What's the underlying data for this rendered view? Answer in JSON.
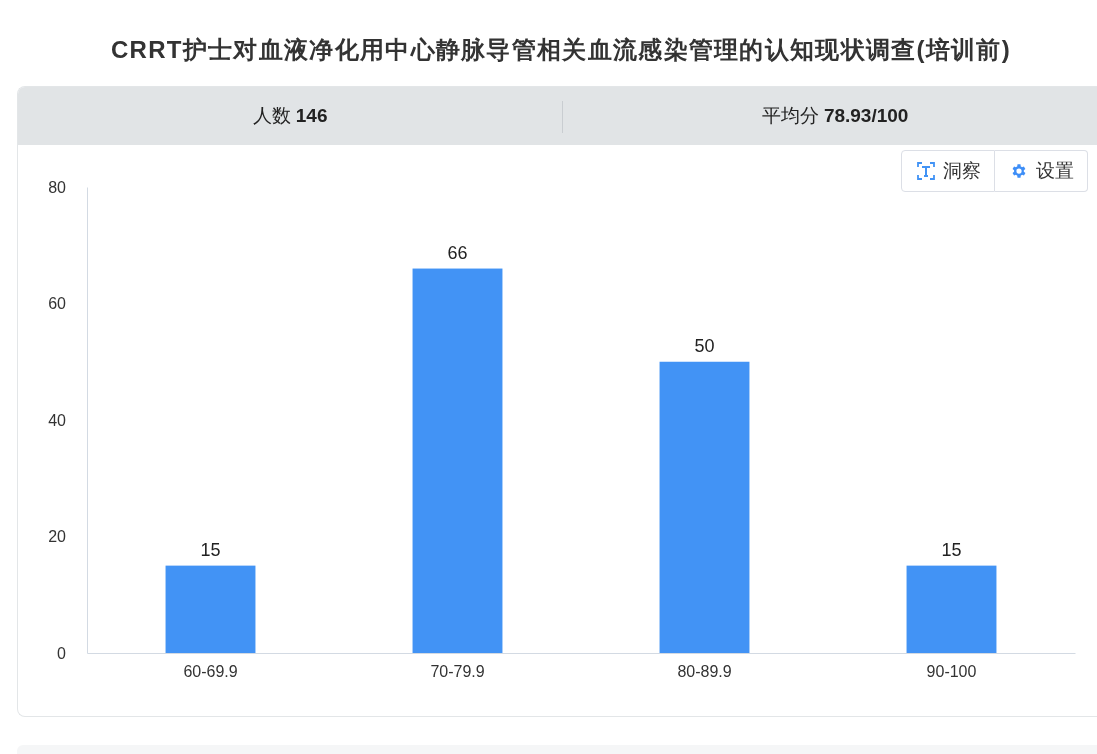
{
  "chart_data": {
    "type": "bar",
    "title": "CRRT护士对血液净化用中心静脉导管相关血流感染管理的认知现状调查(培训前)",
    "categories": [
      "60-69.9",
      "70-79.9",
      "80-89.9",
      "90-100"
    ],
    "values": [
      15,
      66,
      50,
      15
    ],
    "color": "#4293f5",
    "ylim": [
      0,
      80
    ],
    "yticks": [
      0,
      20,
      40,
      60,
      80
    ],
    "data_labels": true,
    "annotations": [
      "人数 146",
      "平均分 78.93/100",
      "洞察",
      "设置"
    ]
  }
}
